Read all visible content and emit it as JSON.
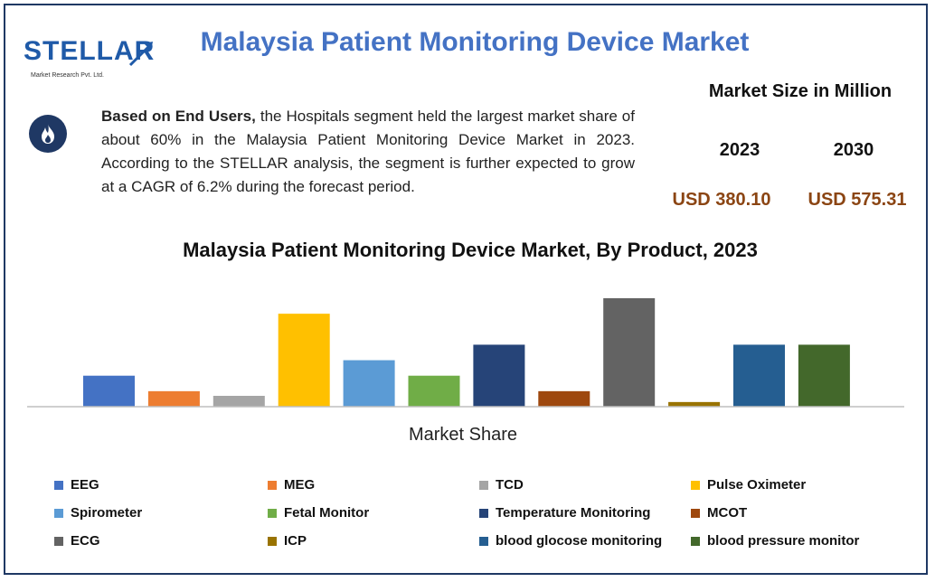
{
  "header": {
    "logo_text": "STELLAR",
    "logo_sub": "Market Research Pvt. Ltd.",
    "title": "Malaysia Patient Monitoring Device Market"
  },
  "summary": {
    "icon": "flame-icon",
    "bold_lead": "Based on End Users,",
    "text": " the Hospitals segment held the largest market share of about 60% in the Malaysia Patient Monitoring Device Market in 2023. According to the STELLAR analysis, the segment is further expected to grow at a CAGR of 6.2% during the forecast period."
  },
  "market_size": {
    "title": "Market Size in Million",
    "year1": "2023",
    "year2": "2030",
    "value1": "USD 380.10",
    "value2": "USD 575.31"
  },
  "chart_data": {
    "type": "bar",
    "title": "Malaysia Patient Monitoring Device Market, By Product, 2023",
    "xlabel": "Market Share",
    "ylabel": "",
    "ylim": [
      0,
      7
    ],
    "categories": [
      "EEG",
      "MEG",
      "TCD",
      "Pulse Oximeter",
      "Spirometer",
      "Fetal Monitor",
      "Temperature Monitoring",
      "MCOT",
      "ECG",
      "ICP",
      "blood glocose monitoring",
      "blood pressure monitor"
    ],
    "values": [
      2,
      1,
      0.7,
      6,
      3,
      2,
      4,
      1,
      7,
      0.3,
      4,
      4
    ],
    "colors": [
      "#4472c4",
      "#ed7d31",
      "#a5a5a5",
      "#ffc000",
      "#5b9bd5",
      "#70ad47",
      "#264478",
      "#9e480e",
      "#636363",
      "#997300",
      "#255e91",
      "#43682b"
    ],
    "legend_position": "bottom"
  }
}
